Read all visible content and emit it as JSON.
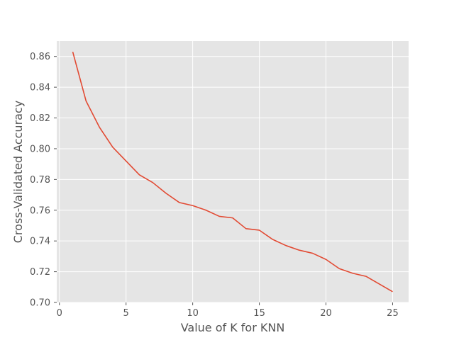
{
  "chart_data": {
    "type": "line",
    "title": "",
    "xlabel": "Value of K for KNN",
    "ylabel": "Cross-Validated Accuracy",
    "xlim": [
      -0.2,
      26.2
    ],
    "ylim": [
      0.7,
      0.87
    ],
    "xticks": [
      0,
      5,
      10,
      15,
      20,
      25
    ],
    "xtick_labels": [
      "0",
      "5",
      "10",
      "15",
      "20",
      "25"
    ],
    "yticks": [
      0.7,
      0.72,
      0.74,
      0.76,
      0.78,
      0.8,
      0.82,
      0.84,
      0.86
    ],
    "ytick_labels": [
      "0.70",
      "0.72",
      "0.74",
      "0.76",
      "0.78",
      "0.80",
      "0.82",
      "0.84",
      "0.86"
    ],
    "grid": true,
    "legend": "none",
    "series": [
      {
        "x": [
          1,
          2,
          3,
          4,
          5,
          6,
          7,
          8,
          9,
          10,
          11,
          12,
          13,
          14,
          15,
          16,
          17,
          18,
          19,
          20,
          21,
          22,
          23,
          24,
          25
        ],
        "y": [
          0.863,
          0.831,
          0.814,
          0.801,
          0.792,
          0.783,
          0.778,
          0.771,
          0.765,
          0.763,
          0.76,
          0.756,
          0.755,
          0.748,
          0.747,
          0.741,
          0.737,
          0.734,
          0.732,
          0.728,
          0.722,
          0.719,
          0.717,
          0.712,
          0.707
        ],
        "color": "#E24A33"
      }
    ]
  },
  "style": {
    "plot_background": "#E5E5E5",
    "grid_color": "#FFFFFF",
    "tick_color": "#555555"
  }
}
